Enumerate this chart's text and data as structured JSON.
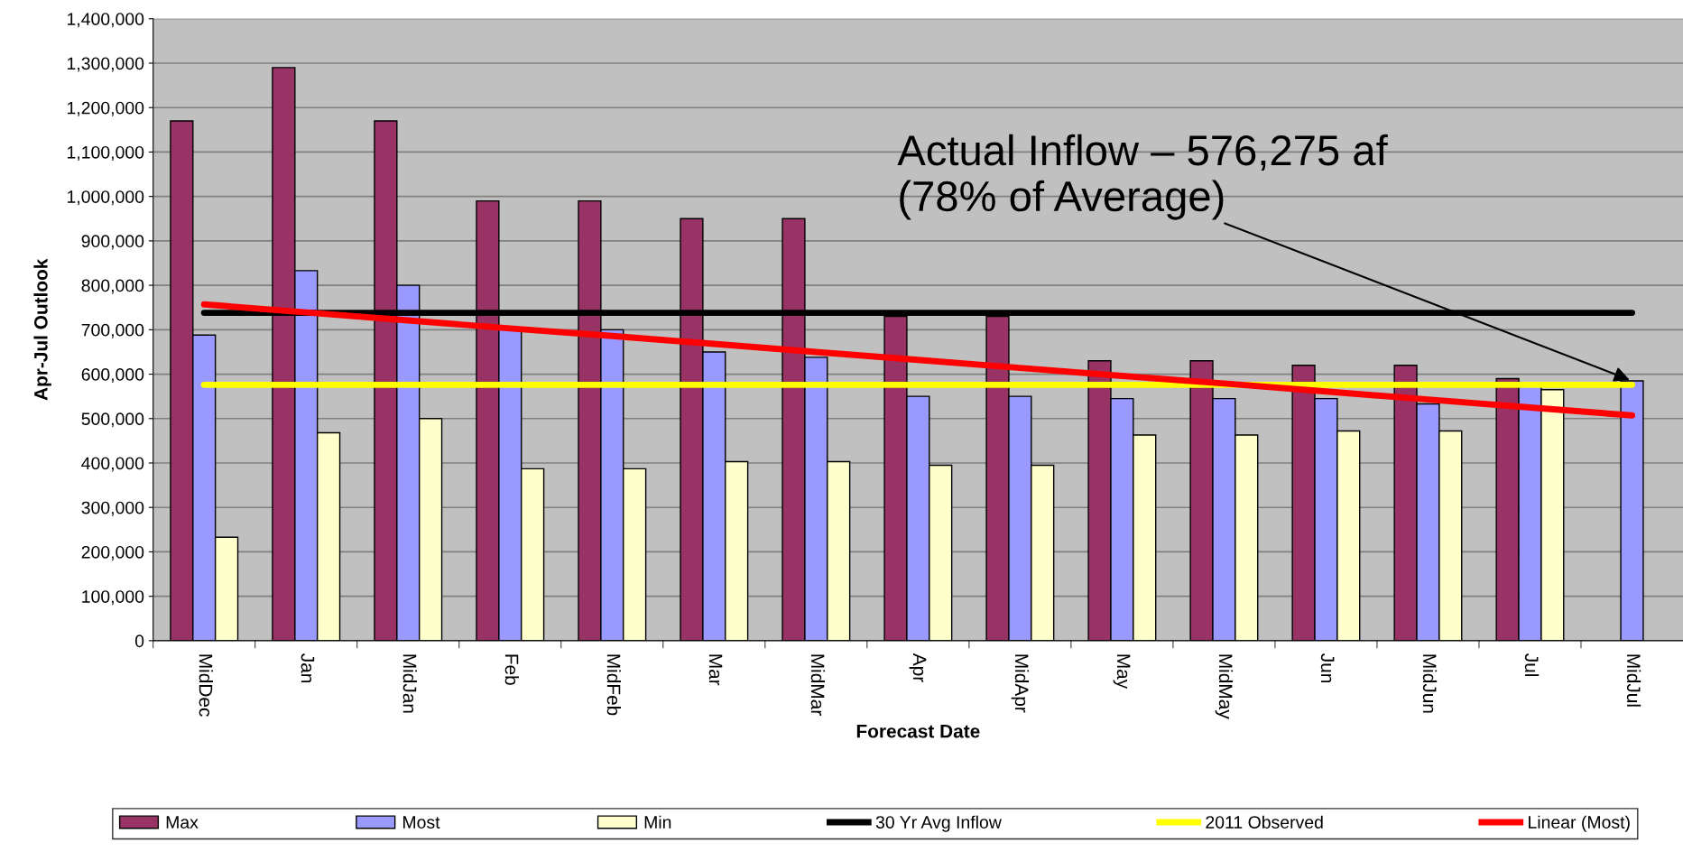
{
  "chart_data": {
    "type": "bar",
    "xlabel": "Forecast Date",
    "ylabel": "Apr-Jul Outlook",
    "categories": [
      "MidDec",
      "Jan",
      "MidJan",
      "Feb",
      "MidFeb",
      "Mar",
      "MidMar",
      "Apr",
      "MidApr",
      "May",
      "MidMay",
      "Jun",
      "MidJun",
      "Jul",
      "MidJul"
    ],
    "series": [
      {
        "name": "Max",
        "color": "#993366",
        "values": [
          1170000,
          1290000,
          1170000,
          990000,
          990000,
          950000,
          950000,
          730000,
          730000,
          630000,
          630000,
          620000,
          620000,
          590000,
          null
        ]
      },
      {
        "name": "Most",
        "color": "#9999ff",
        "values": [
          688000,
          833000,
          800000,
          700000,
          700000,
          650000,
          638000,
          550000,
          550000,
          545000,
          545000,
          545000,
          533000,
          576000,
          585000
        ]
      },
      {
        "name": "Min",
        "color": "#ffffcc",
        "values": [
          233000,
          468000,
          500000,
          387000,
          387000,
          403000,
          403000,
          395000,
          395000,
          463000,
          463000,
          472000,
          472000,
          565000,
          null
        ]
      },
      {
        "name": "30 Yr Avg Inflow",
        "type": "line",
        "color": "#000000",
        "values": [
          738000,
          738000,
          738000,
          738000,
          738000,
          738000,
          738000,
          738000,
          738000,
          738000,
          738000,
          738000,
          738000,
          738000,
          738000
        ]
      },
      {
        "name": "2011 Observed",
        "type": "line",
        "color": "#ffff00",
        "values": [
          576000,
          576000,
          576000,
          576000,
          576000,
          576000,
          576000,
          576000,
          576000,
          576000,
          576000,
          576000,
          576000,
          576000,
          576000
        ]
      },
      {
        "name": "Linear (Most)",
        "type": "line",
        "color": "#ff0000",
        "values": [
          757000,
          739000,
          721000,
          703000,
          686000,
          668000,
          650000,
          632000,
          614000,
          596000,
          579000,
          561000,
          543000,
          525000,
          507000
        ]
      }
    ],
    "ylim": [
      0,
      1400000
    ],
    "yticks": [
      {
        "value": 0,
        "label": "0"
      },
      {
        "value": 100000,
        "label": "100,000"
      },
      {
        "value": 200000,
        "label": "200,000"
      },
      {
        "value": 300000,
        "label": "300,000"
      },
      {
        "value": 400000,
        "label": "400,000"
      },
      {
        "value": 500000,
        "label": "500,000"
      },
      {
        "value": 600000,
        "label": "600,000"
      },
      {
        "value": 700000,
        "label": "700,000"
      },
      {
        "value": 800000,
        "label": "800,000"
      },
      {
        "value": 900000,
        "label": "900,000"
      },
      {
        "value": 1000000,
        "label": "1,000,000"
      },
      {
        "value": 1100000,
        "label": "1,100,000"
      },
      {
        "value": 1200000,
        "label": "1,200,000"
      },
      {
        "value": 1300000,
        "label": "1,300,000"
      },
      {
        "value": 1400000,
        "label": "1,400,000"
      }
    ],
    "annotations": [
      {
        "text": "Actual Inflow – 576,275 af\n(78% of Average)",
        "x": "MidJul",
        "y": 585000
      }
    ],
    "grid": "y",
    "legend": "bottom",
    "marker": "none",
    "line_style": "solid"
  }
}
